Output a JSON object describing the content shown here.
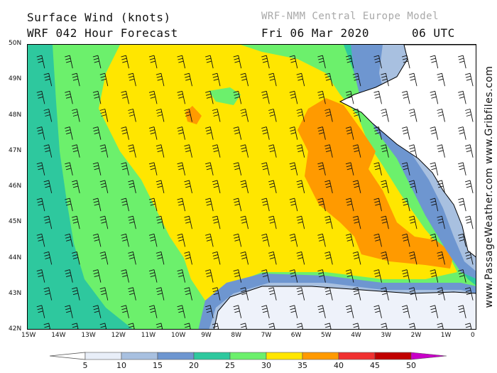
{
  "header": {
    "title_line1": "Surface Wind (knots)",
    "title_line2": "WRF 042 Hour Forecast",
    "model": "WRF-NMM Central Europe Model",
    "date": "Fri 06 Mar 2020",
    "time": "06 UTC"
  },
  "side_credit": "www.PassageWeather.com   www.Gribfiles.com",
  "map": {
    "lat_labels": [
      "50N",
      "49N",
      "48N",
      "47N",
      "46N",
      "45N",
      "44N",
      "43N",
      "42N"
    ],
    "lon_labels": [
      "15W",
      "14W",
      "13W",
      "12W",
      "11W",
      "10W",
      "9W",
      "8W",
      "7W",
      "6W",
      "5W",
      "4W",
      "3W",
      "2W",
      "1W",
      "0"
    ],
    "lat_range": [
      42,
      50
    ],
    "lon_range": [
      -15,
      0
    ],
    "land_color": "#ffffff",
    "coast_color": "#000000"
  },
  "colorbar": {
    "labels": [
      "5",
      "10",
      "15",
      "20",
      "25",
      "30",
      "35",
      "40",
      "45",
      "50"
    ],
    "colors": [
      "#e8eef8",
      "#a8c0e0",
      "#6e96d0",
      "#2ec89e",
      "#6cf06c",
      "#ffe600",
      "#ff9a00",
      "#f03030",
      "#c00000",
      "#c800c8"
    ]
  }
}
